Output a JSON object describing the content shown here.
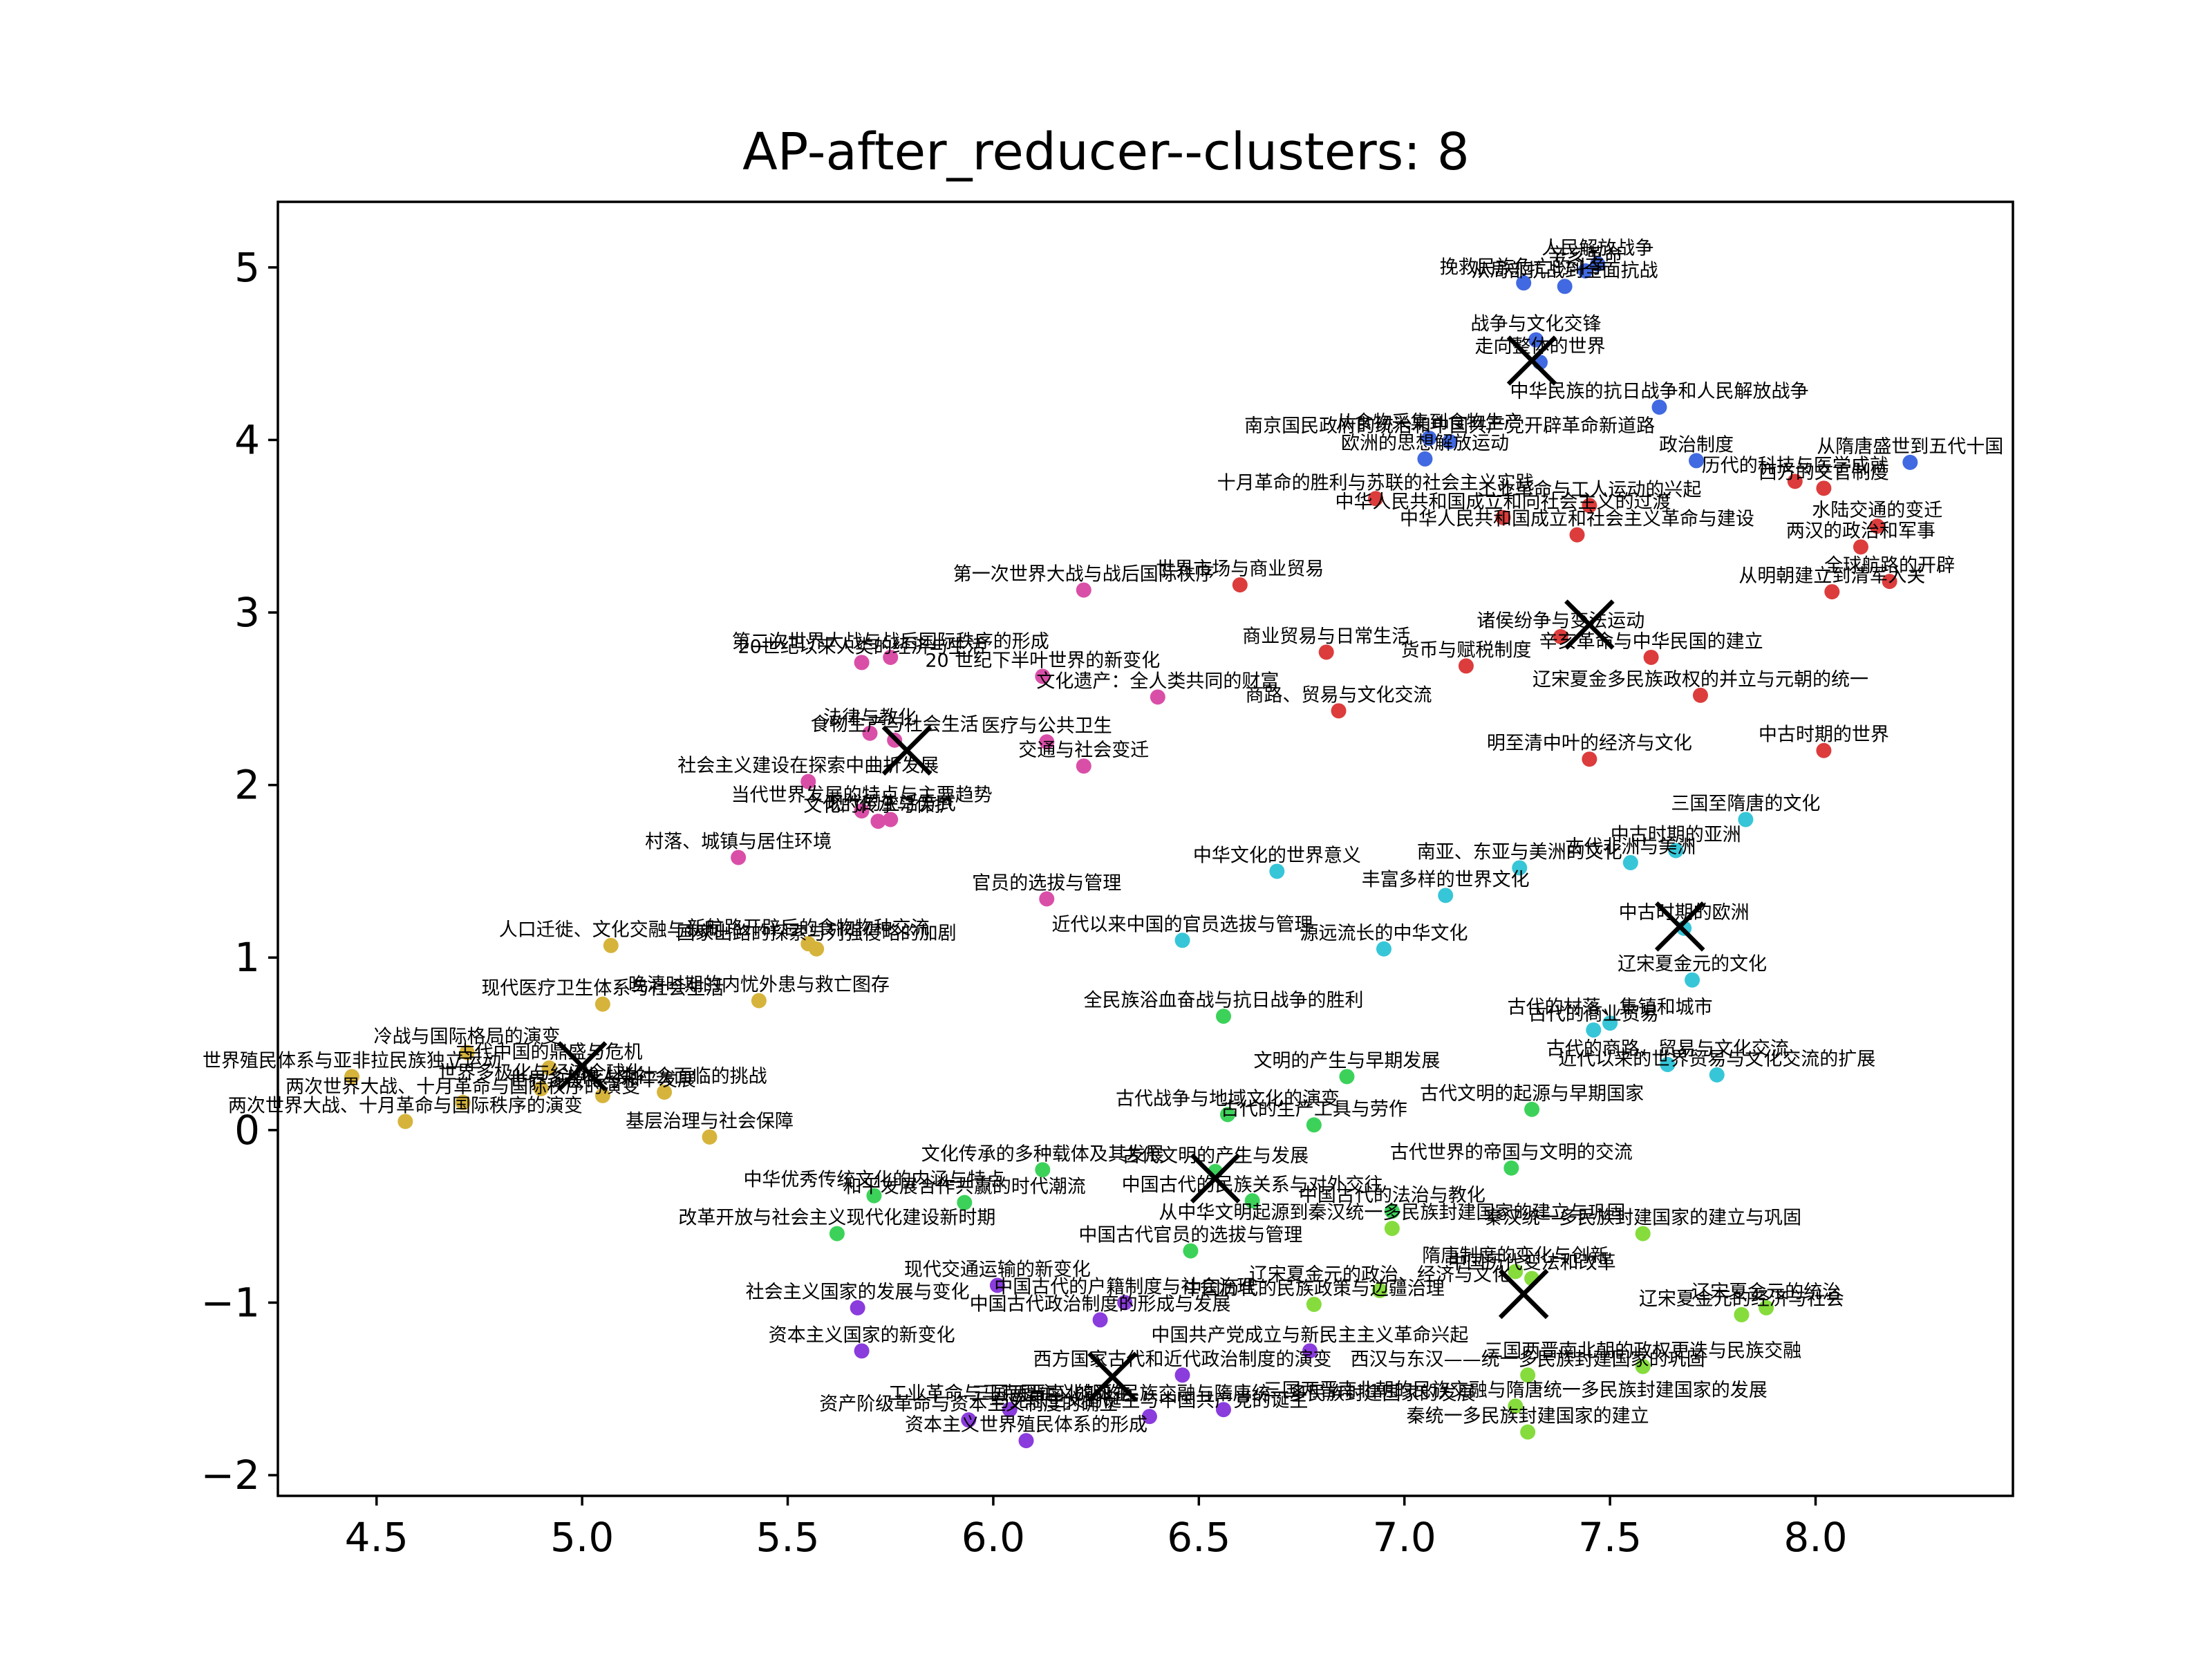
{
  "chart_data": {
    "type": "scatter",
    "title": "AP-after_reducer--clusters: 8",
    "xlabel": "",
    "ylabel": "",
    "xlim": [
      4.26,
      8.48
    ],
    "ylim": [
      -2.12,
      5.38
    ],
    "xticks": [
      4.5,
      5.0,
      5.5,
      6.0,
      6.5,
      7.0,
      7.5,
      8.0
    ],
    "xtick_labels": [
      "4.5",
      "5.0",
      "5.5",
      "6.0",
      "6.5",
      "7.0",
      "7.5",
      "8.0"
    ],
    "yticks": [
      -2,
      -1,
      0,
      1,
      2,
      3,
      4,
      5
    ],
    "ytick_labels": [
      "−2",
      "−1",
      "0",
      "1",
      "2",
      "3",
      "4",
      "5"
    ],
    "grid": false,
    "legend": "none",
    "clusters": [
      {
        "color": "#4169e1",
        "center": [
          7.31,
          4.46
        ]
      },
      {
        "color": "#dc3c3c",
        "center": [
          7.45,
          2.93
        ]
      },
      {
        "color": "#d94fa8",
        "center": [
          5.79,
          2.2
        ]
      },
      {
        "color": "#36c6d8",
        "center": [
          7.67,
          1.18
        ]
      },
      {
        "color": "#d6b43c",
        "center": [
          5.0,
          0.37
        ]
      },
      {
        "color": "#3cd25a",
        "center": [
          6.54,
          -0.28
        ]
      },
      {
        "color": "#86dc3c",
        "center": [
          7.29,
          -0.95
        ]
      },
      {
        "color": "#8a3cdc",
        "center": [
          6.29,
          -1.43
        ]
      }
    ],
    "points": [
      {
        "c": 0,
        "x": 7.44,
        "y": 4.98,
        "label": "辛亥革命"
      },
      {
        "c": 0,
        "x": 7.47,
        "y": 5.02,
        "label": "人民解放战争"
      },
      {
        "c": 0,
        "x": 7.29,
        "y": 4.91,
        "label": "挽救民族危亡的斗争"
      },
      {
        "c": 0,
        "x": 7.39,
        "y": 4.89,
        "label": "从局部抗战到全面抗战"
      },
      {
        "c": 0,
        "x": 7.32,
        "y": 4.58,
        "label": "战争与文化交锋"
      },
      {
        "c": 0,
        "x": 7.33,
        "y": 4.45,
        "label": "走向整体的世界"
      },
      {
        "c": 0,
        "x": 7.62,
        "y": 4.19,
        "label": "中华民族的抗日战争和人民解放战争"
      },
      {
        "c": 0,
        "x": 7.06,
        "y": 4.01,
        "label": "从食物采集到食物生产"
      },
      {
        "c": 0,
        "x": 7.11,
        "y": 3.99,
        "label": "南京国民政府的统治和中国共产党开辟革命新道路"
      },
      {
        "c": 0,
        "x": 7.05,
        "y": 3.89,
        "label": "欧洲的思想解放运动"
      },
      {
        "c": 0,
        "x": 7.71,
        "y": 3.88,
        "label": "政治制度"
      },
      {
        "c": 0,
        "x": 8.23,
        "y": 3.87,
        "label": "从隋唐盛世到五代十国"
      },
      {
        "c": 1,
        "x": 8.02,
        "y": 3.72,
        "label": "西方的文官制度"
      },
      {
        "c": 1,
        "x": 7.95,
        "y": 3.76,
        "label": "历代的科技与医学成就"
      },
      {
        "c": 1,
        "x": 6.93,
        "y": 3.66,
        "label": "十月革命的胜利与苏联的社会主义实践"
      },
      {
        "c": 1,
        "x": 7.45,
        "y": 3.62,
        "label": "工业革命与工人运动的兴起"
      },
      {
        "c": 1,
        "x": 7.24,
        "y": 3.55,
        "label": "中华人民共和国成立和向社会主义的过渡"
      },
      {
        "c": 1,
        "x": 8.15,
        "y": 3.5,
        "label": "水陆交通的变迁"
      },
      {
        "c": 1,
        "x": 7.42,
        "y": 3.45,
        "label": "中华人民共和国成立和社会主义革命与建设"
      },
      {
        "c": 1,
        "x": 8.11,
        "y": 3.38,
        "label": "两汉的政治和军事"
      },
      {
        "c": 1,
        "x": 6.6,
        "y": 3.16,
        "label": "世界市场与商业贸易"
      },
      {
        "c": 1,
        "x": 8.18,
        "y": 3.18,
        "label": "全球航路的开辟"
      },
      {
        "c": 1,
        "x": 8.04,
        "y": 3.12,
        "label": "从明朝建立到清军入关"
      },
      {
        "c": 1,
        "x": 7.38,
        "y": 2.86,
        "label": "诸侯纷争与变法运动"
      },
      {
        "c": 1,
        "x": 6.81,
        "y": 2.77,
        "label": "商业贸易与日常生活"
      },
      {
        "c": 1,
        "x": 7.6,
        "y": 2.74,
        "label": "辛亥革命与中华民国的建立"
      },
      {
        "c": 1,
        "x": 7.15,
        "y": 2.69,
        "label": "货币与赋税制度"
      },
      {
        "c": 1,
        "x": 7.72,
        "y": 2.52,
        "label": "辽宋夏金多民族政权的并立与元朝的统一"
      },
      {
        "c": 1,
        "x": 6.84,
        "y": 2.43,
        "label": "商路、贸易与文化交流"
      },
      {
        "c": 1,
        "x": 7.45,
        "y": 2.15,
        "label": "明至清中叶的经济与文化"
      },
      {
        "c": 1,
        "x": 8.02,
        "y": 2.2,
        "label": "中古时期的世界"
      },
      {
        "c": 2,
        "x": 6.22,
        "y": 3.13,
        "label": "第一次世界大战与战后国际秩序"
      },
      {
        "c": 2,
        "x": 5.68,
        "y": 2.71,
        "label": "20世纪以来人类的经济与生活"
      },
      {
        "c": 2,
        "x": 5.75,
        "y": 2.74,
        "label": "第二次世界大战与战后国际秩序的形成"
      },
      {
        "c": 2,
        "x": 6.12,
        "y": 2.63,
        "label": "20 世纪下半叶世界的新变化"
      },
      {
        "c": 2,
        "x": 6.4,
        "y": 2.51,
        "label": "文化遗产：全人类共同的财富"
      },
      {
        "c": 2,
        "x": 5.7,
        "y": 2.3,
        "label": "法律与教化"
      },
      {
        "c": 2,
        "x": 5.76,
        "y": 2.26,
        "label": "食物生产与社会生活"
      },
      {
        "c": 2,
        "x": 6.13,
        "y": 2.25,
        "label": "医疗与公共卫生"
      },
      {
        "c": 2,
        "x": 6.22,
        "y": 2.11,
        "label": "交通与社会变迁"
      },
      {
        "c": 2,
        "x": 5.55,
        "y": 2.02,
        "label": "社会主义建设在探索中曲折发展"
      },
      {
        "c": 2,
        "x": 5.68,
        "y": 1.85,
        "label": "当代世界发展的特点与主要趋势"
      },
      {
        "c": 2,
        "x": 5.72,
        "y": 1.79,
        "label": "文化的传承与保护"
      },
      {
        "c": 2,
        "x": 5.75,
        "y": 1.8,
        "label": "现代的生活方式"
      },
      {
        "c": 2,
        "x": 5.38,
        "y": 1.58,
        "label": "村落、城镇与居住环境"
      },
      {
        "c": 2,
        "x": 6.13,
        "y": 1.34,
        "label": "官员的选拔与管理"
      },
      {
        "c": 3,
        "x": 7.83,
        "y": 1.8,
        "label": "三国至隋唐的文化"
      },
      {
        "c": 3,
        "x": 7.66,
        "y": 1.62,
        "label": "中古时期的亚洲"
      },
      {
        "c": 3,
        "x": 7.55,
        "y": 1.55,
        "label": "古代非洲与美洲"
      },
      {
        "c": 3,
        "x": 6.69,
        "y": 1.5,
        "label": "中华文化的世界意义"
      },
      {
        "c": 3,
        "x": 7.28,
        "y": 1.52,
        "label": "南亚、东亚与美洲的文化"
      },
      {
        "c": 3,
        "x": 7.1,
        "y": 1.36,
        "label": "丰富多样的世界文化"
      },
      {
        "c": 3,
        "x": 7.68,
        "y": 1.17,
        "label": "中古时期的欧洲"
      },
      {
        "c": 3,
        "x": 6.46,
        "y": 1.1,
        "label": "近代以来中国的官员选拔与管理"
      },
      {
        "c": 3,
        "x": 6.95,
        "y": 1.05,
        "label": "源远流长的中华文化"
      },
      {
        "c": 3,
        "x": 7.7,
        "y": 0.87,
        "label": "辽宋夏金元的文化"
      },
      {
        "c": 3,
        "x": 7.5,
        "y": 0.62,
        "label": "古代的村落、集镇和城市"
      },
      {
        "c": 3,
        "x": 7.46,
        "y": 0.58,
        "label": "古代的商业贸易"
      },
      {
        "c": 3,
        "x": 7.64,
        "y": 0.38,
        "label": "古代的商路、贸易与文化交流"
      },
      {
        "c": 3,
        "x": 7.76,
        "y": 0.32,
        "label": "近代以来的世界贸易与文化交流的扩展"
      },
      {
        "c": 4,
        "x": 5.07,
        "y": 1.07,
        "label": "人口迁徙、文化交融与认同"
      },
      {
        "c": 4,
        "x": 5.55,
        "y": 1.08,
        "label": "新航路开辟后的食物物种交流"
      },
      {
        "c": 4,
        "x": 5.57,
        "y": 1.05,
        "label": "国家出路的探索与列强侵略的加剧"
      },
      {
        "c": 4,
        "x": 5.05,
        "y": 0.73,
        "label": "现代医疗卫生体系与社会生活"
      },
      {
        "c": 4,
        "x": 5.43,
        "y": 0.75,
        "label": "晚清时期的内忧外患与救亡图存"
      },
      {
        "c": 4,
        "x": 4.72,
        "y": 0.45,
        "label": "冷战与国际格局的演变"
      },
      {
        "c": 4,
        "x": 4.92,
        "y": 0.36,
        "label": "古代中国的鼎盛与危机"
      },
      {
        "c": 4,
        "x": 4.44,
        "y": 0.31,
        "label": "世界殖民体系与亚非拉民族独立运动"
      },
      {
        "c": 4,
        "x": 4.9,
        "y": 0.24,
        "label": "世界多极化与经济全球化"
      },
      {
        "c": 4,
        "x": 5.05,
        "y": 0.2,
        "label": "世界多极化与和平发展"
      },
      {
        "c": 4,
        "x": 5.2,
        "y": 0.22,
        "label": "当代人类社会面临的挑战"
      },
      {
        "c": 4,
        "x": 4.71,
        "y": 0.16,
        "label": "两次世界大战、十月革命与国际秩序的演变"
      },
      {
        "c": 4,
        "x": 4.57,
        "y": 0.05,
        "label": "两次世界大战、十月革命与国际秩序的演变"
      },
      {
        "c": 4,
        "x": 5.31,
        "y": -0.04,
        "label": "基层治理与社会保障"
      },
      {
        "c": 5,
        "x": 6.56,
        "y": 0.66,
        "label": "全民族浴血奋战与抗日战争的胜利"
      },
      {
        "c": 5,
        "x": 6.86,
        "y": 0.31,
        "label": "文明的产生与早期发展"
      },
      {
        "c": 5,
        "x": 6.78,
        "y": 0.03,
        "label": "古代的生产工具与劳作"
      },
      {
        "c": 5,
        "x": 6.57,
        "y": 0.09,
        "label": "古代战争与地域文化的演变"
      },
      {
        "c": 5,
        "x": 7.31,
        "y": 0.12,
        "label": "古代文明的起源与早期国家"
      },
      {
        "c": 5,
        "x": 6.12,
        "y": -0.23,
        "label": "文化传承的多种载体及其发展"
      },
      {
        "c": 5,
        "x": 6.54,
        "y": -0.24,
        "label": "古代文明的产生与发展"
      },
      {
        "c": 5,
        "x": 7.26,
        "y": -0.22,
        "label": "古代世界的帝国与文明的交流"
      },
      {
        "c": 5,
        "x": 5.93,
        "y": -0.42,
        "label": "和平发展合作共赢的时代潮流"
      },
      {
        "c": 5,
        "x": 5.71,
        "y": -0.38,
        "label": "中华优秀传统文化的内涵与特点"
      },
      {
        "c": 5,
        "x": 6.63,
        "y": -0.41,
        "label": "中国古代的民族关系与对外交往"
      },
      {
        "c": 5,
        "x": 6.97,
        "y": -0.47,
        "label": "中国古代的法治与教化"
      },
      {
        "c": 5,
        "x": 5.62,
        "y": -0.6,
        "label": "改革开放与社会主义现代化建设新时期"
      },
      {
        "c": 5,
        "x": 6.48,
        "y": -0.7,
        "label": "中国古代官员的选拔与管理"
      },
      {
        "c": 6,
        "x": 6.97,
        "y": -0.57,
        "label": "从中华文明起源到秦汉统一多民族封建国家的建立与巩固"
      },
      {
        "c": 6,
        "x": 7.58,
        "y": -0.6,
        "label": "秦汉统一多民族封建国家的建立与巩固"
      },
      {
        "c": 6,
        "x": 7.27,
        "y": -0.82,
        "label": "隋唐制度的变化与创新"
      },
      {
        "c": 6,
        "x": 7.31,
        "y": -0.86,
        "label": "中国历代变法和改革"
      },
      {
        "c": 6,
        "x": 6.94,
        "y": -0.93,
        "label": "辽宋夏金元的政治、经济与文化"
      },
      {
        "c": 6,
        "x": 6.78,
        "y": -1.01,
        "label": "中国历代的民族政策与边疆治理"
      },
      {
        "c": 6,
        "x": 7.88,
        "y": -1.03,
        "label": "辽宋夏金元的统治"
      },
      {
        "c": 6,
        "x": 7.82,
        "y": -1.07,
        "label": "辽宋夏金元的经济与社会"
      },
      {
        "c": 6,
        "x": 7.58,
        "y": -1.37,
        "label": "三国两晋南北朝的政权更迭与民族交融"
      },
      {
        "c": 6,
        "x": 7.3,
        "y": -1.42,
        "label": "西汉与东汉——统一多民族封建国家的巩固"
      },
      {
        "c": 6,
        "x": 7.27,
        "y": -1.6,
        "label": "三国两晋南北朝的民族交融与隋唐统一多民族封建国家的发展"
      },
      {
        "c": 6,
        "x": 7.3,
        "y": -1.75,
        "label": "秦统一多民族封建国家的建立"
      },
      {
        "c": 7,
        "x": 6.01,
        "y": -0.9,
        "label": "现代交通运输的新变化"
      },
      {
        "c": 7,
        "x": 5.67,
        "y": -1.03,
        "label": "社会主义国家的发展与变化"
      },
      {
        "c": 7,
        "x": 6.32,
        "y": -1.0,
        "label": "中国古代的户籍制度与社会治理"
      },
      {
        "c": 7,
        "x": 6.26,
        "y": -1.1,
        "label": "中国古代政治制度的形成与发展"
      },
      {
        "c": 7,
        "x": 6.77,
        "y": -1.28,
        "label": "中国共产党成立与新民主主义革命兴起"
      },
      {
        "c": 7,
        "x": 5.68,
        "y": -1.28,
        "label": "资本主义国家的新变化"
      },
      {
        "c": 7,
        "x": 6.46,
        "y": -1.42,
        "label": "西方国家古代和近代政治制度的演变"
      },
      {
        "c": 7,
        "x": 6.04,
        "y": -1.62,
        "label": "工业革命与马克思主义的诞生"
      },
      {
        "c": 7,
        "x": 6.56,
        "y": -1.62,
        "label": "三国两晋南北朝的民族交融与隋唐统一多民族封建国家的发展"
      },
      {
        "c": 7,
        "x": 5.94,
        "y": -1.68,
        "label": "资产阶级革命与资本主义制度的确立"
      },
      {
        "c": 7,
        "x": 6.38,
        "y": -1.66,
        "label": "马克思主义的诞生与中国共产党的诞生"
      },
      {
        "c": 7,
        "x": 6.08,
        "y": -1.8,
        "label": "资本主义世界殖民体系的形成"
      }
    ]
  }
}
